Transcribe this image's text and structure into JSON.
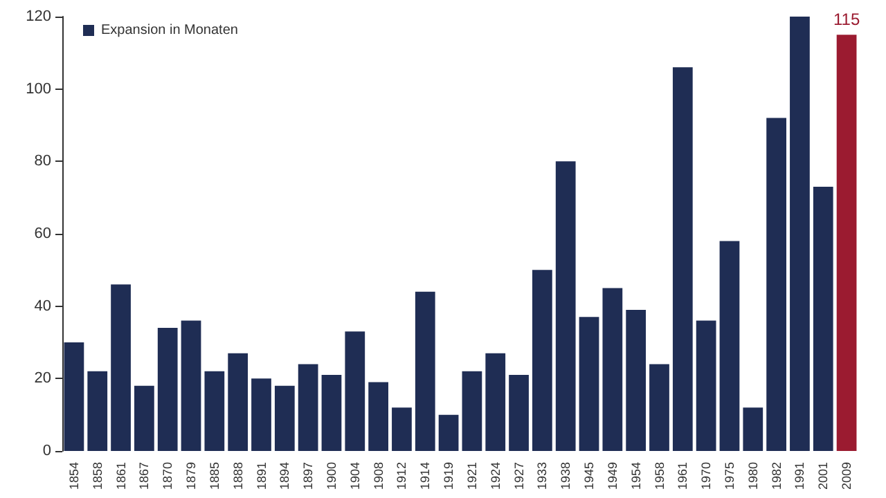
{
  "chart_data": {
    "type": "bar",
    "categories": [
      "1854",
      "1858",
      "1861",
      "1867",
      "1870",
      "1879",
      "1885",
      "1888",
      "1891",
      "1894",
      "1897",
      "1900",
      "1904",
      "1908",
      "1912",
      "1914",
      "1919",
      "1921",
      "1924",
      "1927",
      "1933",
      "1938",
      "1945",
      "1949",
      "1954",
      "1958",
      "1961",
      "1970",
      "1975",
      "1980",
      "1982",
      "1991",
      "2001",
      "2009"
    ],
    "series": [
      {
        "name": "Expansion in Monaten",
        "color": "#1f2d54",
        "colors": [
          "#1f2d54",
          "#1f2d54",
          "#1f2d54",
          "#1f2d54",
          "#1f2d54",
          "#1f2d54",
          "#1f2d54",
          "#1f2d54",
          "#1f2d54",
          "#1f2d54",
          "#1f2d54",
          "#1f2d54",
          "#1f2d54",
          "#1f2d54",
          "#1f2d54",
          "#1f2d54",
          "#1f2d54",
          "#1f2d54",
          "#1f2d54",
          "#1f2d54",
          "#1f2d54",
          "#1f2d54",
          "#1f2d54",
          "#1f2d54",
          "#1f2d54",
          "#1f2d54",
          "#1f2d54",
          "#1f2d54",
          "#1f2d54",
          "#1f2d54",
          "#1f2d54",
          "#1f2d54",
          "#1f2d54",
          "#9b1b30"
        ],
        "values": [
          30,
          22,
          46,
          18,
          34,
          36,
          22,
          27,
          20,
          18,
          24,
          21,
          33,
          19,
          12,
          44,
          10,
          22,
          27,
          21,
          50,
          80,
          37,
          45,
          39,
          24,
          106,
          36,
          58,
          12,
          92,
          120,
          73,
          115
        ],
        "value_labels": [
          null,
          null,
          null,
          null,
          null,
          null,
          null,
          null,
          null,
          null,
          null,
          null,
          null,
          null,
          null,
          null,
          null,
          null,
          null,
          null,
          null,
          null,
          null,
          null,
          null,
          null,
          null,
          null,
          null,
          null,
          null,
          null,
          null,
          "115"
        ]
      }
    ],
    "ylim": [
      0,
      120
    ],
    "yticks": [
      0,
      20,
      40,
      60,
      80,
      100,
      120
    ],
    "legend": "top left"
  }
}
